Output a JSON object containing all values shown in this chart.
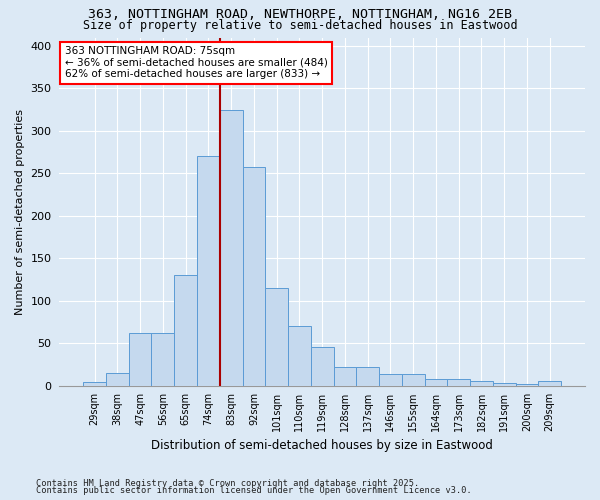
{
  "title": "363, NOTTINGHAM ROAD, NEWTHORPE, NOTTINGHAM, NG16 2EB",
  "subtitle": "Size of property relative to semi-detached houses in Eastwood",
  "xlabel": "Distribution of semi-detached houses by size in Eastwood",
  "ylabel": "Number of semi-detached properties",
  "categories": [
    "29sqm",
    "38sqm",
    "47sqm",
    "56sqm",
    "65sqm",
    "74sqm",
    "83sqm",
    "92sqm",
    "101sqm",
    "110sqm",
    "119sqm",
    "128sqm",
    "137sqm",
    "146sqm",
    "155sqm",
    "164sqm",
    "173sqm",
    "182sqm",
    "191sqm",
    "200sqm",
    "209sqm"
  ],
  "values": [
    4,
    15,
    62,
    62,
    130,
    270,
    325,
    258,
    115,
    70,
    45,
    22,
    22,
    14,
    14,
    8,
    8,
    5,
    3,
    2,
    5
  ],
  "bar_color": "#c5d9ee",
  "bar_edge_color": "#5b9bd5",
  "vline_color": "#aa0000",
  "annotation_title": "363 NOTTINGHAM ROAD: 75sqm",
  "annotation_line1": "← 36% of semi-detached houses are smaller (484)",
  "annotation_line2": "62% of semi-detached houses are larger (833) →",
  "bg_color": "#dce9f5",
  "ylim": [
    0,
    410
  ],
  "yticks": [
    0,
    50,
    100,
    150,
    200,
    250,
    300,
    350,
    400
  ],
  "footnote1": "Contains HM Land Registry data © Crown copyright and database right 2025.",
  "footnote2": "Contains public sector information licensed under the Open Government Licence v3.0."
}
